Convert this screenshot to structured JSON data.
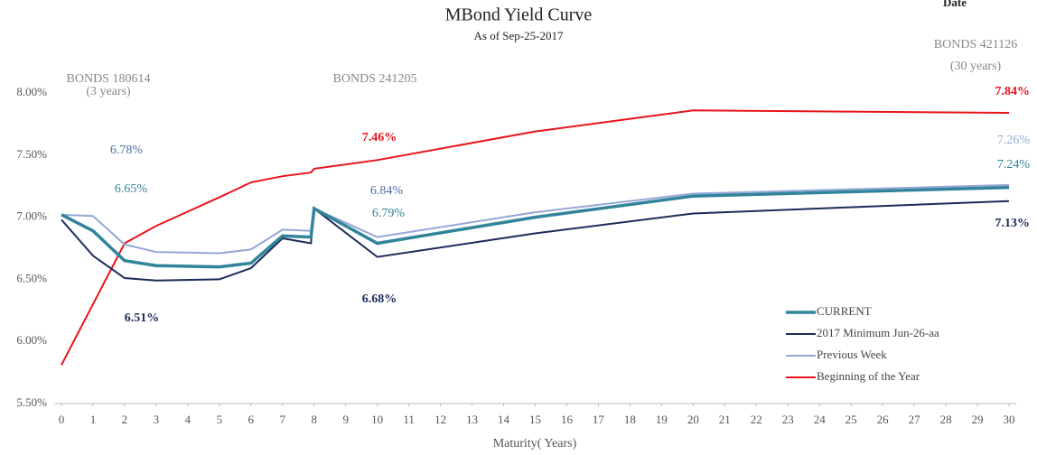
{
  "chart_data": {
    "type": "line",
    "title": "MBond Yield Curve",
    "subtitle": "As of Sep-25-2017",
    "corner_label": "Date",
    "xlabel": "Maturity( Years)",
    "x": [
      0,
      1,
      2,
      3,
      5,
      6,
      7,
      7.9,
      8,
      10,
      15,
      20,
      30
    ],
    "series": [
      {
        "name": "CURRENT",
        "color": "#31849b",
        "values": [
          7.02,
          6.89,
          6.65,
          6.61,
          6.6,
          6.63,
          6.85,
          6.84,
          7.07,
          6.79,
          7.0,
          7.17,
          7.24
        ],
        "value_labels": [
          null,
          null,
          "6.65%",
          null,
          null,
          null,
          null,
          null,
          null,
          "6.79%",
          null,
          null,
          "7.24%"
        ]
      },
      {
        "name": "2017 Minimum Jun-26-aa",
        "color": "#1c2b5a",
        "values": [
          6.98,
          6.69,
          6.51,
          6.49,
          6.5,
          6.59,
          6.83,
          6.79,
          7.07,
          6.68,
          6.87,
          7.03,
          7.13
        ],
        "value_labels": [
          null,
          null,
          "6.51%",
          null,
          null,
          null,
          null,
          null,
          null,
          "6.68%",
          null,
          null,
          "7.13%"
        ]
      },
      {
        "name": "Previous Week",
        "color": "#95a7d6",
        "values": [
          7.02,
          7.01,
          6.78,
          6.72,
          6.71,
          6.74,
          6.9,
          6.89,
          7.07,
          6.84,
          7.04,
          7.19,
          7.26
        ],
        "value_labels": [
          null,
          null,
          "6.78%",
          null,
          null,
          null,
          null,
          null,
          null,
          "6.84%",
          null,
          null,
          "7.26%"
        ]
      },
      {
        "name": "Beginning of the Year",
        "color": "#e8141b",
        "values": [
          5.81,
          6.3,
          6.79,
          6.93,
          7.16,
          7.28,
          7.33,
          7.36,
          7.39,
          7.46,
          7.69,
          7.86,
          7.84
        ],
        "value_labels": [
          null,
          null,
          null,
          null,
          null,
          null,
          null,
          null,
          null,
          "7.46%",
          null,
          null,
          "7.84%"
        ]
      }
    ],
    "annotations": [
      {
        "text": "BONDS 180614",
        "subtext": "(3 years)"
      },
      {
        "text": "BONDS 241205"
      },
      {
        "text": "BONDS 421126",
        "subtext": "(30 years)"
      }
    ],
    "xlim": [
      0,
      30
    ],
    "xticks": [
      0,
      1,
      2,
      3,
      4,
      5,
      6,
      7,
      8,
      9,
      10,
      11,
      12,
      13,
      14,
      15,
      16,
      17,
      18,
      19,
      20,
      21,
      22,
      23,
      24,
      25,
      26,
      27,
      28,
      29,
      30
    ],
    "ylim": [
      5.5,
      8.0
    ],
    "yticks": [
      {
        "value": 5.5,
        "label": "5.50%"
      },
      {
        "value": 6.0,
        "label": "6.00%"
      },
      {
        "value": 6.5,
        "label": "6.50%"
      },
      {
        "value": 7.0,
        "label": "7.00%"
      },
      {
        "value": 7.5,
        "label": "7.50%"
      },
      {
        "value": 8.0,
        "label": "8.00%"
      }
    ],
    "legend": "lower right"
  }
}
